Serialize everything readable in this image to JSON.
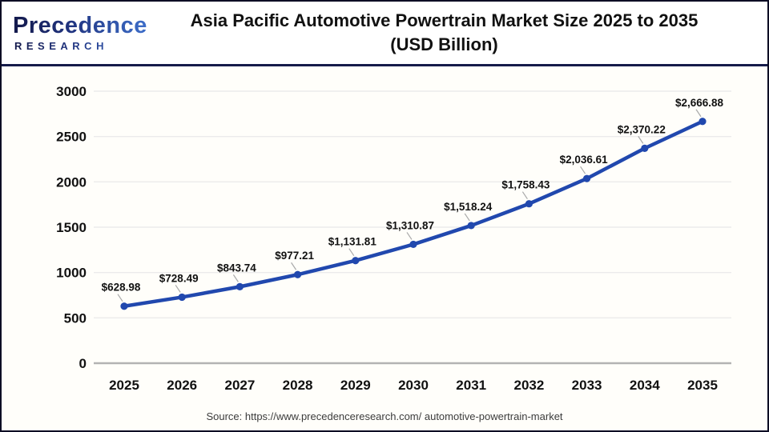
{
  "logo": {
    "name": "Precedence",
    "subname": "RESEARCH"
  },
  "header": {
    "title_line1": "Asia Pacific Automotive Powertrain Market Size 2025 to 2035",
    "title_line2": "(USD Billion)"
  },
  "source": "Source: https://www.precedenceresearch.com/ automotive-powertrain-market",
  "colors": {
    "line": "#2148ae",
    "marker": "#2148ae",
    "grid": "#ebebeb",
    "axis_baseline": "#b3b3b3",
    "leader": "#a9a9a9",
    "tick_label": "#111111",
    "data_label": "#111111",
    "divider_navy": "#151b4a"
  },
  "chart_data": {
    "type": "line",
    "title": "Asia Pacific Automotive Powertrain Market Size 2025 to 2035 (USD Billion)",
    "categories": [
      "2025",
      "2026",
      "2027",
      "2028",
      "2029",
      "2030",
      "2031",
      "2032",
      "2033",
      "2034",
      "2035"
    ],
    "values": [
      628.98,
      728.49,
      843.74,
      977.21,
      1131.81,
      1310.87,
      1518.24,
      1758.43,
      2036.61,
      2370.22,
      2666.88
    ],
    "value_labels": [
      "$628.98",
      "$728.49",
      "$843.74",
      "$977.21",
      "$1,131.81",
      "$1,310.87",
      "$1,518.24",
      "$1,758.43",
      "$2,036.61",
      "$2,370.22",
      "$2,666.88"
    ],
    "xlabel": "",
    "ylabel": "",
    "ylim": [
      0,
      3000
    ],
    "yticks": [
      0,
      500,
      1000,
      1500,
      2000,
      2500,
      3000
    ],
    "grid": true,
    "legend": "none"
  }
}
